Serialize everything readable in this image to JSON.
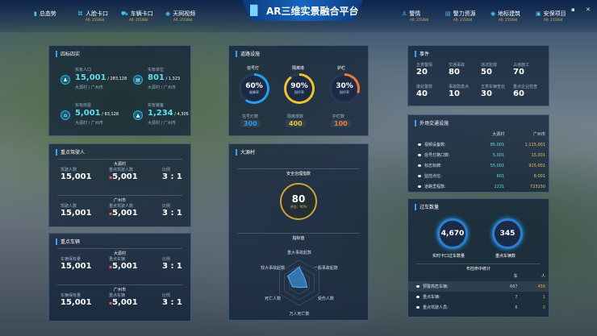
{
  "header": {
    "title": "AR三维实景融合平台",
    "nav_left": [
      {
        "label": "总态势",
        "sub": ""
      },
      {
        "label": "人脸卡口",
        "sub": "AR: 255084"
      },
      {
        "label": "车辆卡口",
        "sub": "AR: 255084"
      },
      {
        "label": "天网视频",
        "sub": "AR: 255084"
      }
    ],
    "nav_right": [
      {
        "label": "警情",
        "sub": "AR: 255084"
      },
      {
        "label": "警力资源",
        "sub": "AR: 255084"
      },
      {
        "label": "地标建筑",
        "sub": "AR: 255084"
      },
      {
        "label": "安保项目",
        "sub": "AR: 255084"
      }
    ]
  },
  "p1": {
    "title": "四标四实",
    "items": [
      {
        "label": "实有人口",
        "value": "15,001",
        "total": "/ 283,128",
        "sub": "大源村 / 广州市"
      },
      {
        "label": "实有单位",
        "value": "801",
        "total": "/ 1,323",
        "sub": "大源村 / 广州市"
      },
      {
        "label": "实有房屋",
        "value": "5,001",
        "total": "/ 83,128",
        "sub": "大源村 / 广州市"
      },
      {
        "label": "实有装备",
        "value": "1,234",
        "total": "/ 4,305",
        "sub": "大源村 / 广州市"
      }
    ]
  },
  "p2": {
    "title": "重点驾驶人",
    "groups": [
      {
        "name": "大源村",
        "a_label": "驾驶人数",
        "a": "15,001",
        "b_label": "重点驾驶人数",
        "b": "5,001",
        "c_label": "比例",
        "c": "3 : 1"
      },
      {
        "name": "广州市",
        "a_label": "驾驶人数",
        "a": "15,001",
        "b_label": "重点驾驶人数",
        "b": "5,001",
        "c_label": "比例",
        "c": "3 : 1"
      }
    ]
  },
  "p3": {
    "title": "重点车辆",
    "groups": [
      {
        "name": "大源村",
        "a_label": "车辆保有量",
        "a": "15,001",
        "b_label": "重点车辆",
        "b": "5,001",
        "c_label": "比例",
        "c": "3 : 1"
      },
      {
        "name": "广州市",
        "a_label": "车辆保有量",
        "a": "15,001",
        "b_label": "重点车辆",
        "b": "5,001",
        "c_label": "比例",
        "c": "3 : 1"
      }
    ]
  },
  "p4": {
    "title": "道路设施",
    "rings": [
      {
        "label": "信号灯",
        "pct": "60%",
        "pct_value": 60,
        "sub": "故障率",
        "count_label": "信号灯数",
        "count": "300",
        "color": "#2a9df4"
      },
      {
        "label": "隔离墩",
        "pct": "90%",
        "pct_value": 90,
        "sub": "损坏率",
        "count_label": "隔离墩数",
        "count": "400",
        "color": "#f2c230"
      },
      {
        "label": "护栏",
        "pct": "30%",
        "pct_value": 30,
        "sub": "损坏率",
        "count_label": "护栏数",
        "count": "100",
        "color": "#f07a3a"
      }
    ]
  },
  "p5": {
    "title": "大源村",
    "index_title": "安全治理指数",
    "score": "80",
    "eval": "评估：90%",
    "radar_title": "指标值",
    "radar": [
      {
        "label": "重大事故起数",
        "value": 0.7
      },
      {
        "label": "一般事故起数",
        "value": 0.3
      },
      {
        "label": "受伤人数",
        "value": 0.4
      },
      {
        "label": "万人死亡数",
        "value": 0.2
      },
      {
        "label": "死亡人数",
        "value": 0.35
      },
      {
        "label": "较大事故起数",
        "value": 0.6
      }
    ]
  },
  "p6": {
    "title": "事件",
    "items": [
      {
        "label": "五类警情",
        "value": "20"
      },
      {
        "label": "交通事故",
        "value": "80"
      },
      {
        "label": "违法犯罪",
        "value": "50"
      },
      {
        "label": "占道施工",
        "value": "70"
      },
      {
        "label": "接处警数",
        "value": "40"
      },
      {
        "label": "事故隐患点",
        "value": "10"
      },
      {
        "label": "五类车辆查处",
        "value": "30"
      },
      {
        "label": "重点企业检查",
        "value": "60"
      }
    ]
  },
  "p7": {
    "title": "外场交通设施",
    "col1": "大源村",
    "col2": "广州市",
    "rows": [
      {
        "label": "视频设备数:",
        "a": "85,001",
        "b": "1,115,001"
      },
      {
        "label": "信号灯路口数:",
        "a": "5,001",
        "b": "15,001"
      },
      {
        "label": "标志标牌:",
        "a": "55,001",
        "b": "915,001"
      },
      {
        "label": "监控点位:",
        "a": "601",
        "b": "8,001"
      },
      {
        "label": "道路里程数:",
        "a": "1231",
        "b": "723150"
      }
    ]
  },
  "p8": {
    "title": "过车数量",
    "c1": "4,670",
    "c1_label": "实时卡口过车数量",
    "c2": "345",
    "c2_label": "重点车辆数",
    "sec": "布控命中统计",
    "col1": "车",
    "col2": "人",
    "rows": [
      {
        "label": "预警高危车辆:",
        "a": "667",
        "b": "456"
      },
      {
        "label": "重点车辆:",
        "a": "7",
        "b": "1"
      },
      {
        "label": "重点驾驶人员:",
        "a": "6",
        "b": "0"
      }
    ]
  }
}
